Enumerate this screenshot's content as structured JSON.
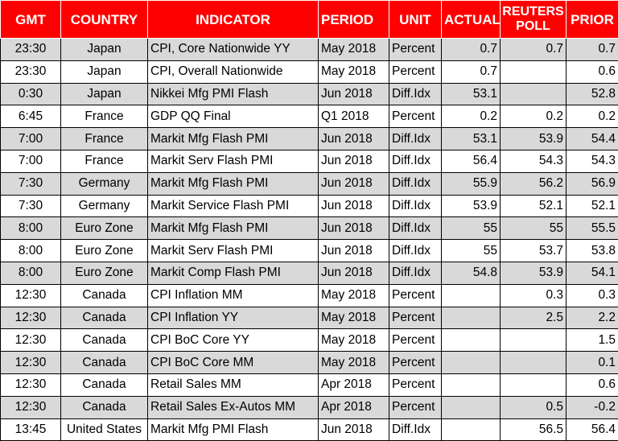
{
  "headers": {
    "gmt": "GMT",
    "country": "COUNTRY",
    "indicator": "INDICATOR",
    "period": "PERIOD",
    "unit": "UNIT",
    "actual": "ACTUAL",
    "poll_line1": "REUTERS",
    "poll_line2": "POLL",
    "prior": "PRIOR"
  },
  "colors": {
    "header_bg": "#ff0000",
    "header_text": "#ffffff",
    "shaded_row": "#d9d9d9"
  },
  "rows": [
    {
      "gmt": "23:30",
      "country": "Japan",
      "indicator": "CPI, Core Nationwide YY",
      "period": "May 2018",
      "unit": "Percent",
      "actual": "0.7",
      "poll": "0.7",
      "prior": "0.7"
    },
    {
      "gmt": "23:30",
      "country": "Japan",
      "indicator": "CPI, Overall Nationwide",
      "period": "May 2018",
      "unit": "Percent",
      "actual": "0.7",
      "poll": "",
      "prior": "0.6"
    },
    {
      "gmt": "0:30",
      "country": "Japan",
      "indicator": "Nikkei Mfg PMI Flash",
      "period": "Jun 2018",
      "unit": "Diff.Idx",
      "actual": "53.1",
      "poll": "",
      "prior": "52.8"
    },
    {
      "gmt": "6:45",
      "country": "France",
      "indicator": "GDP QQ Final",
      "period": "Q1 2018",
      "unit": "Percent",
      "actual": "0.2",
      "poll": "0.2",
      "prior": "0.2"
    },
    {
      "gmt": "7:00",
      "country": "France",
      "indicator": "Markit Mfg Flash PMI",
      "period": "Jun 2018",
      "unit": "Diff.Idx",
      "actual": "53.1",
      "poll": "53.9",
      "prior": "54.4"
    },
    {
      "gmt": "7:00",
      "country": "France",
      "indicator": "Markit Serv Flash PMI",
      "period": "Jun 2018",
      "unit": "Diff.Idx",
      "actual": "56.4",
      "poll": "54.3",
      "prior": "54.3"
    },
    {
      "gmt": "7:30",
      "country": "Germany",
      "indicator": "Markit Mfg Flash PMI",
      "period": "Jun 2018",
      "unit": "Diff.Idx",
      "actual": "55.9",
      "poll": "56.2",
      "prior": "56.9"
    },
    {
      "gmt": "7:30",
      "country": "Germany",
      "indicator": "Markit Service Flash PMI",
      "period": "Jun 2018",
      "unit": "Diff.Idx",
      "actual": "53.9",
      "poll": "52.1",
      "prior": "52.1"
    },
    {
      "gmt": "8:00",
      "country": "Euro Zone",
      "indicator": "Markit Mfg Flash PMI",
      "period": "Jun 2018",
      "unit": "Diff.Idx",
      "actual": "55",
      "poll": "55",
      "prior": "55.5"
    },
    {
      "gmt": "8:00",
      "country": "Euro Zone",
      "indicator": "Markit Serv Flash PMI",
      "period": "Jun 2018",
      "unit": "Diff.Idx",
      "actual": "55",
      "poll": "53.7",
      "prior": "53.8"
    },
    {
      "gmt": "8:00",
      "country": "Euro Zone",
      "indicator": "Markit Comp Flash PMI",
      "period": "Jun 2018",
      "unit": "Diff.Idx",
      "actual": "54.8",
      "poll": "53.9",
      "prior": "54.1"
    },
    {
      "gmt": "12:30",
      "country": "Canada",
      "indicator": "CPI Inflation MM",
      "period": "May 2018",
      "unit": "Percent",
      "actual": "",
      "poll": "0.3",
      "prior": "0.3"
    },
    {
      "gmt": "12:30",
      "country": "Canada",
      "indicator": "CPI Inflation YY",
      "period": "May 2018",
      "unit": "Percent",
      "actual": "",
      "poll": "2.5",
      "prior": "2.2"
    },
    {
      "gmt": "12:30",
      "country": "Canada",
      "indicator": "CPI BoC Core YY",
      "period": "May 2018",
      "unit": "Percent",
      "actual": "",
      "poll": "",
      "prior": "1.5"
    },
    {
      "gmt": "12:30",
      "country": "Canada",
      "indicator": "CPI BoC Core MM",
      "period": "May 2018",
      "unit": "Percent",
      "actual": "",
      "poll": "",
      "prior": "0.1"
    },
    {
      "gmt": "12:30",
      "country": "Canada",
      "indicator": "Retail Sales MM",
      "period": "Apr 2018",
      "unit": "Percent",
      "actual": "",
      "poll": "",
      "prior": "0.6"
    },
    {
      "gmt": "12:30",
      "country": "Canada",
      "indicator": "Retail Sales Ex-Autos MM",
      "period": "Apr 2018",
      "unit": "Percent",
      "actual": "",
      "poll": "0.5",
      "prior": "-0.2"
    },
    {
      "gmt": "13:45",
      "country": "United States",
      "indicator": "Markit Mfg PMI Flash",
      "period": "Jun 2018",
      "unit": "Diff.Idx",
      "actual": "",
      "poll": "56.5",
      "prior": "56.4"
    }
  ]
}
